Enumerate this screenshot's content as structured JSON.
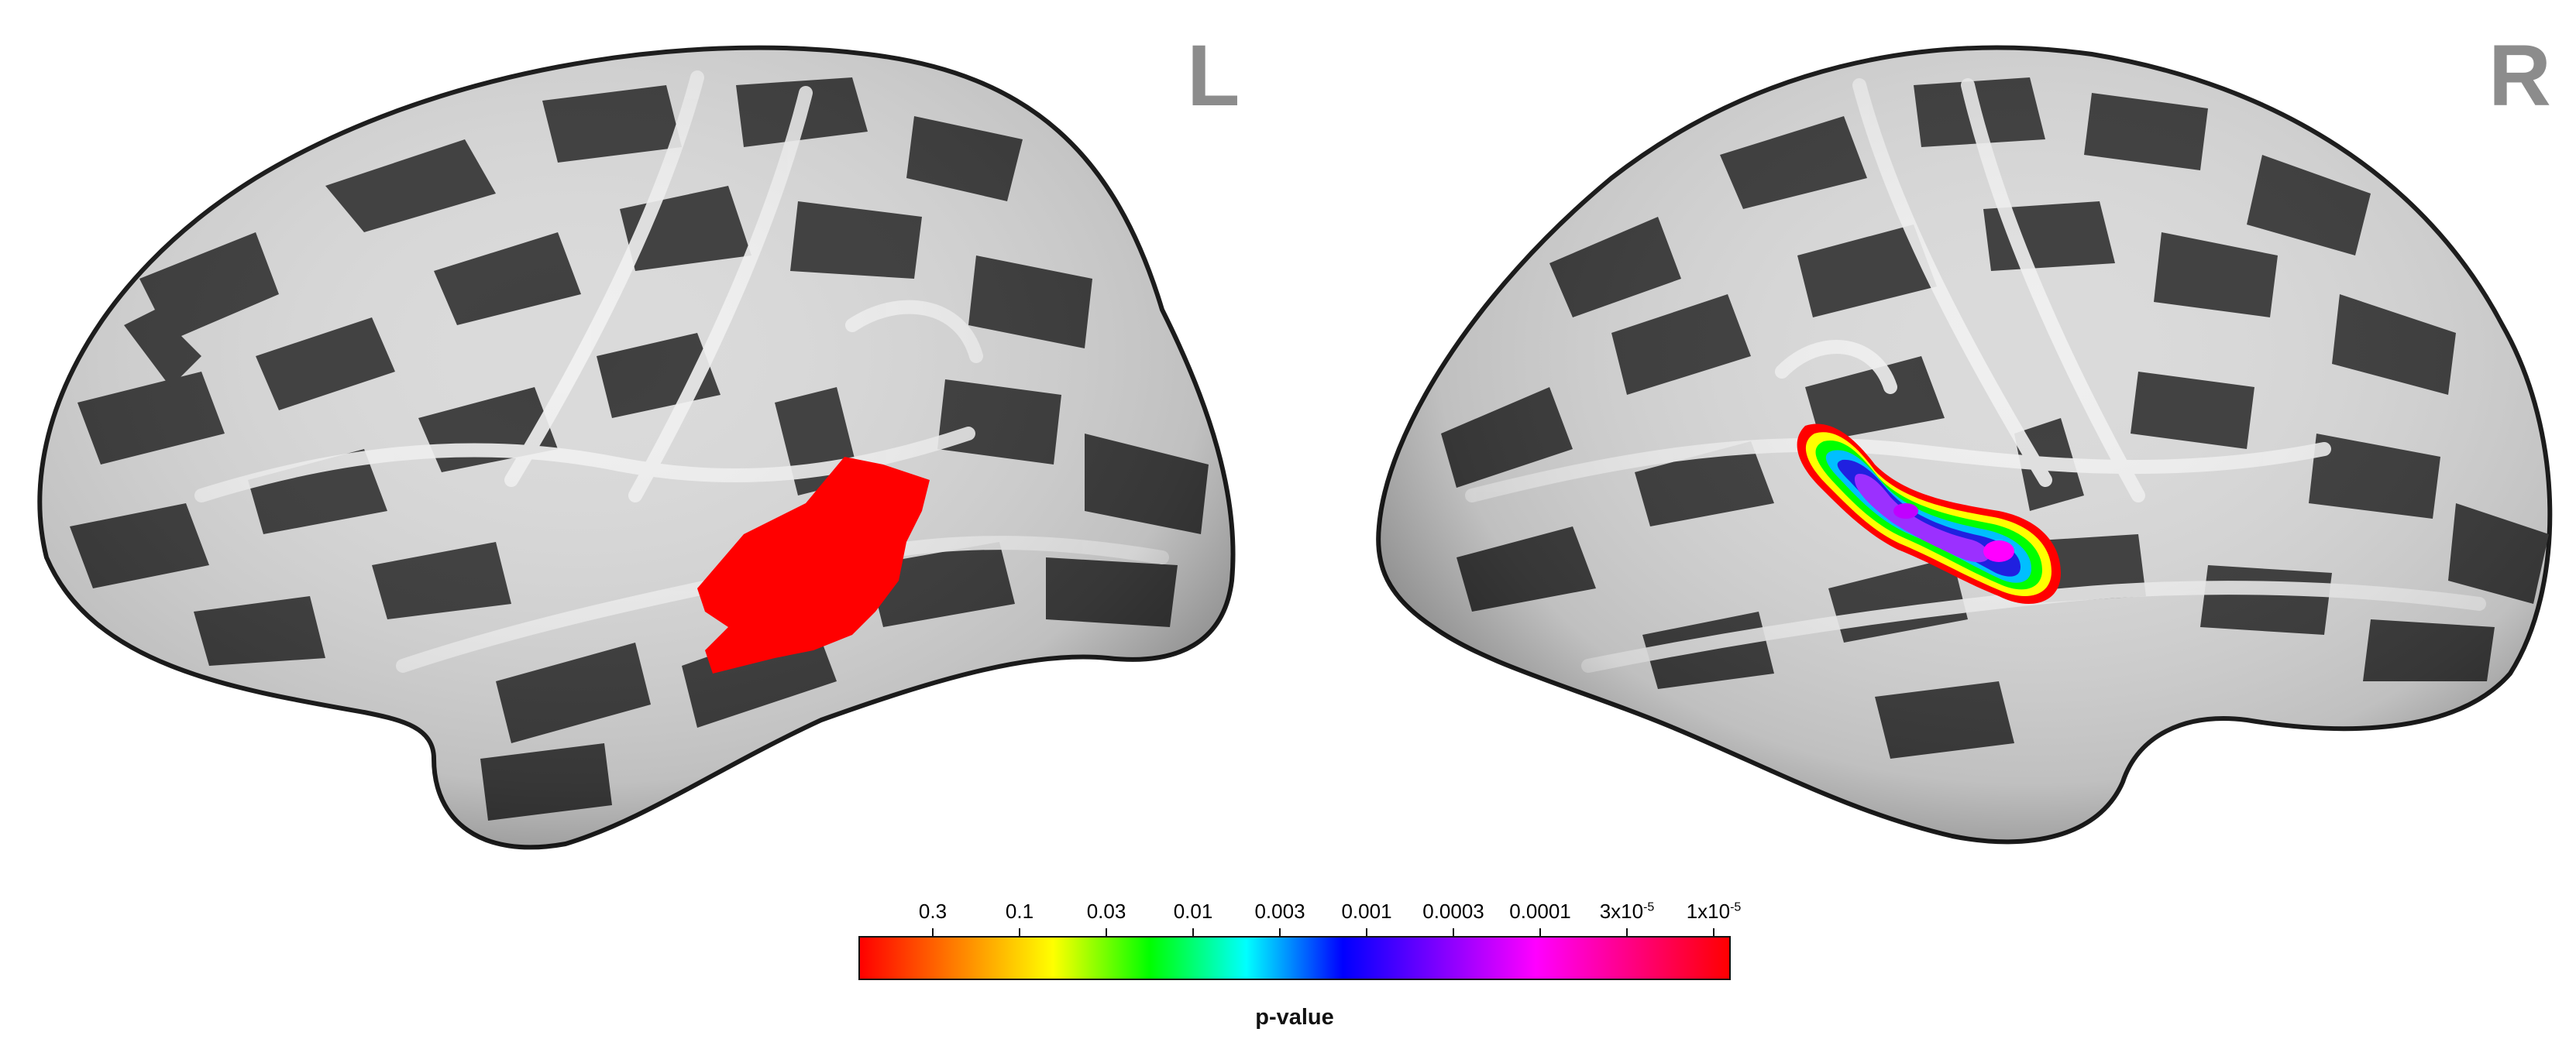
{
  "hemispheres": [
    {
      "letter": "L",
      "side": "left",
      "activation": "uniform red patch, superior temporal region"
    },
    {
      "letter": "R",
      "side": "right",
      "activation": "graded colour patch along superior temporal sulcus"
    }
  ],
  "colors": {
    "letter_gray": "#8c8c8c",
    "activation_red": "#ff0000",
    "sulcus_dark": "#3e3e3e",
    "gyrus_light": "#dadada",
    "outline": "#1c1c1c"
  },
  "colorbar": {
    "title": "p-value",
    "ticks": [
      {
        "label": "0.3"
      },
      {
        "label": "0.1"
      },
      {
        "label": "0.03"
      },
      {
        "label": "0.01"
      },
      {
        "label": "0.003"
      },
      {
        "label": "0.001"
      },
      {
        "label": "0.0003"
      },
      {
        "label": "0.0001"
      },
      {
        "label": "3x10",
        "exp": "-5"
      },
      {
        "label": "1x10",
        "exp": "-5"
      }
    ],
    "gradient_colors": [
      "#ff0000",
      "#ff7f00",
      "#ffff00",
      "#00ff00",
      "#00ffff",
      "#0000ff",
      "#7f00ff",
      "#ff00ff",
      "#ff0080",
      "#ff0000"
    ]
  }
}
